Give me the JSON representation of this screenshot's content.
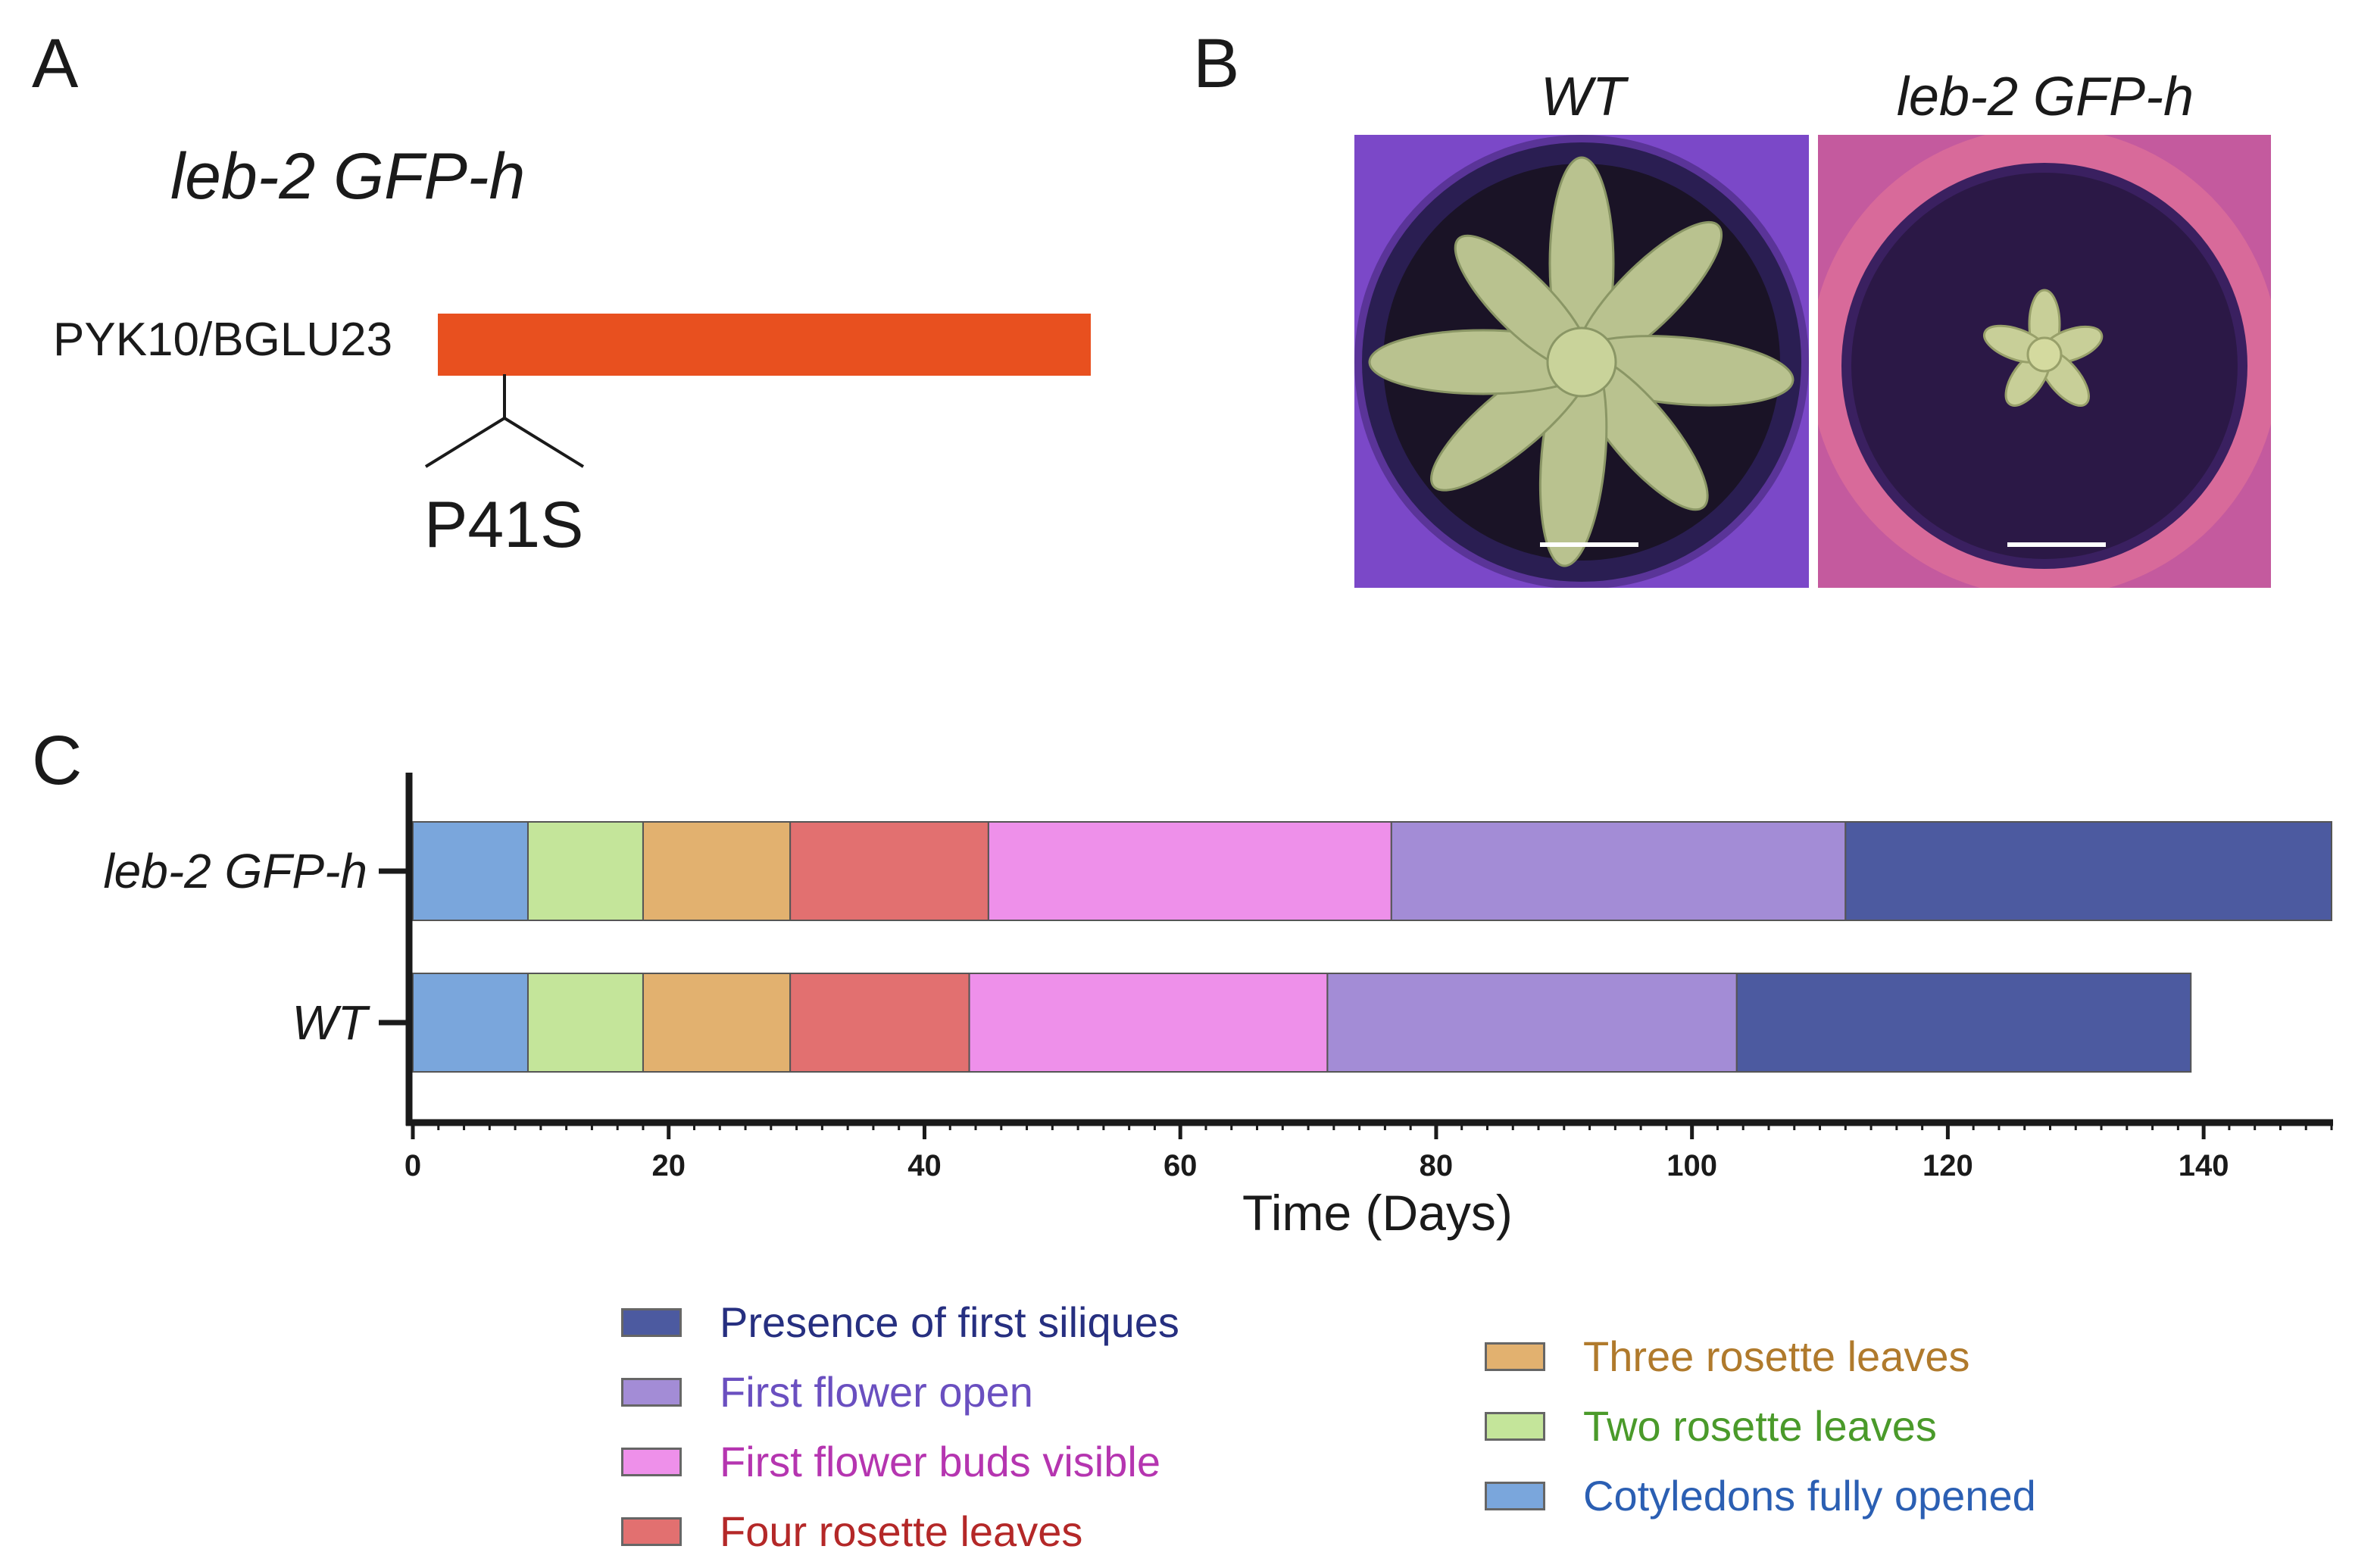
{
  "panel_a": {
    "letter": "A",
    "title": "leb-2 GFP-h",
    "gene_label": "PYK10/BGLU23",
    "mutation": "P41S",
    "bar_color": "#e8501f"
  },
  "panel_b": {
    "letter": "B",
    "photos": [
      {
        "title": "WT",
        "pot_color": "#2a1e52"
      },
      {
        "title": "leb-2 GFP-h",
        "pot_color": "#d86a9a"
      }
    ]
  },
  "panel_c": {
    "letter": "C",
    "xlabel": "Time (Days)"
  },
  "chart_data": {
    "type": "bar",
    "orientation": "horizontal",
    "stacked": true,
    "title": "",
    "xlabel": "Time (Days)",
    "ylabel": "",
    "xlim": [
      0,
      150
    ],
    "xticks": [
      0,
      20,
      40,
      60,
      80,
      100,
      120,
      140
    ],
    "categories": [
      "leb-2 GFP-h",
      "WT"
    ],
    "series": [
      {
        "name": "Cotyledons fully opened",
        "color": "#7aa6dc",
        "text_color": "#2b5fb3",
        "values": [
          9,
          9
        ]
      },
      {
        "name": "Two rosette leaves",
        "color": "#c4e59a",
        "text_color": "#4a9a2a",
        "values": [
          9,
          9
        ]
      },
      {
        "name": "Three rosette leaves",
        "color": "#e2b16f",
        "text_color": "#b07a2c",
        "values": [
          11.5,
          11.5
        ]
      },
      {
        "name": "Four rosette leaves",
        "color": "#e27070",
        "text_color": "#b42828",
        "values": [
          15.5,
          14
        ]
      },
      {
        "name": "First flower buds visible",
        "color": "#ee90ea",
        "text_color": "#b535b0",
        "values": [
          31.5,
          28
        ]
      },
      {
        "name": "First flower open",
        "color": "#a38cd6",
        "text_color": "#6a4fc0",
        "values": [
          35.5,
          32
        ]
      },
      {
        "name": "Presence of first siliques",
        "color": "#4c5aa0",
        "text_color": "#262f80",
        "values": [
          38,
          35.5
        ]
      }
    ]
  },
  "legend": {
    "left_column": [
      "Presence of first siliques",
      "First flower open",
      "First flower buds visible",
      "Four rosette leaves"
    ],
    "right_column": [
      "Three rosette leaves",
      "Two rosette leaves",
      "Cotyledons fully opened"
    ]
  }
}
